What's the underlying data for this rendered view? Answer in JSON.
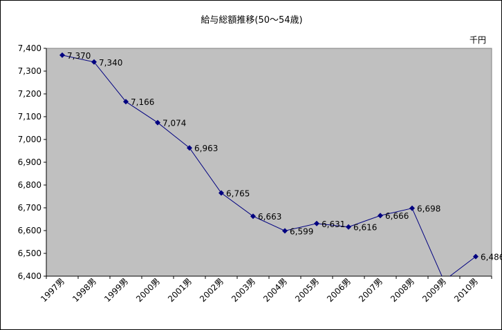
{
  "chart_data": {
    "type": "line",
    "title": "給与総額推移(50～54歳)",
    "unit_label": "千円",
    "xlabel": "",
    "ylabel": "",
    "categories": [
      "1997男",
      "1998男",
      "1999男",
      "2000男",
      "2001男",
      "2002男",
      "2003男",
      "2004男",
      "2005男",
      "2006男",
      "2007男",
      "2008男",
      "2009男",
      "2010男"
    ],
    "series": [
      {
        "values": [
          7370,
          7340,
          7166,
          7074,
          6963,
          6765,
          6663,
          6599,
          6631,
          6616,
          6666,
          6698,
          6380,
          6486
        ],
        "labels": [
          "7,370",
          "7,340",
          "7,166",
          "7,074",
          "6,963",
          "6,765",
          "6,663",
          "6,599",
          "6,631",
          "6,616",
          "6,666",
          "6,698",
          "",
          "6,486"
        ]
      }
    ],
    "ylim": [
      6400,
      7400
    ],
    "yticks": [
      6400,
      6500,
      6600,
      6700,
      6800,
      6900,
      7000,
      7100,
      7200,
      7300,
      7400
    ],
    "ytick_labels": [
      "6,400",
      "6,500",
      "6,600",
      "6,700",
      "6,800",
      "6,900",
      "7,000",
      "7,100",
      "7,200",
      "7,300",
      "7,400"
    ],
    "grid": false,
    "legend": "none",
    "colors": {
      "plot_background": "#c0c0c0",
      "line": "#000080",
      "marker": "#000080"
    }
  }
}
